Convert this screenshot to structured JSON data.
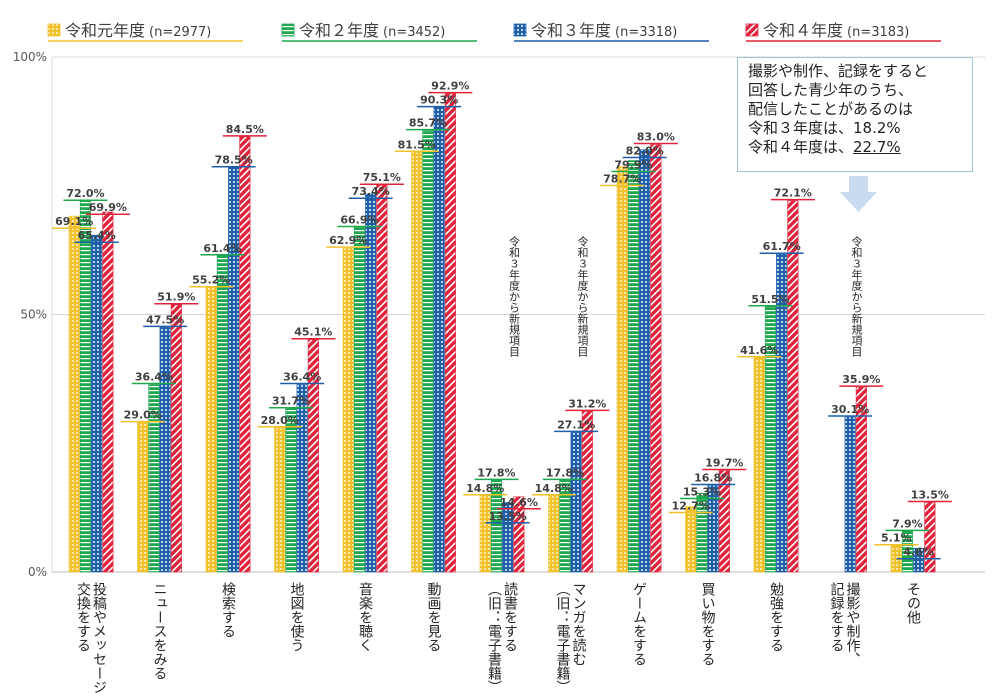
{
  "chart_data": {
    "type": "bar",
    "ylim": [
      0,
      100
    ],
    "y_ticks": [
      "0%",
      "50%",
      "100%"
    ],
    "legend_position": "top",
    "grid": true,
    "series": [
      {
        "name": "令和元年度",
        "n_label": "(n=2977)",
        "color": "#f2c12e",
        "pattern": "dots",
        "values": [
          69.1,
          29.0,
          55.2,
          28.0,
          62.9,
          81.5,
          14.8,
          14.8,
          78.7,
          12.7,
          41.6,
          null,
          5.1
        ]
      },
      {
        "name": "令和２年度",
        "n_label": "(n=3452)",
        "color": "#1fa84f",
        "pattern": "hlines",
        "values": [
          72.0,
          36.4,
          61.4,
          31.7,
          66.9,
          85.7,
          17.8,
          17.8,
          79.9,
          15.3,
          51.5,
          null,
          7.9
        ]
      },
      {
        "name": "令和３年度",
        "n_label": "(n=3318)",
        "color": "#1f5fa8",
        "pattern": "grid",
        "values": [
          65.4,
          47.5,
          78.5,
          36.4,
          73.4,
          90.3,
          13.5,
          27.1,
          82.0,
          16.8,
          61.7,
          30.1,
          4.6
        ]
      },
      {
        "name": "令和４年度",
        "n_label": "(n=3183)",
        "color": "#e0233a",
        "pattern": "diag",
        "values": [
          69.9,
          51.9,
          84.5,
          45.1,
          75.1,
          92.9,
          14.6,
          31.2,
          83.0,
          19.7,
          72.1,
          35.9,
          13.5
        ]
      }
    ],
    "categories": [
      "投稿やメッセージ交換をする",
      "ニュースをみる",
      "検索する",
      "地図を使う",
      "音楽を聴く",
      "動画を見る",
      "読書をする（旧：電子書籍）",
      "マンガを読む（旧：電子書籍）",
      "ゲームをする",
      "買い物をする",
      "勉強をする",
      "撮影や制作、記録をする",
      "その他"
    ],
    "category_label_lines": [
      [
        "投稿やメッセージ",
        "交換をする"
      ],
      [
        "ニュースをみる"
      ],
      [
        "検索する"
      ],
      [
        "地図を使う"
      ],
      [
        "音楽を聴く"
      ],
      [
        "動画を見る"
      ],
      [
        "読書をする",
        "（旧：電子書籍）"
      ],
      [
        "マンガを読む",
        "（旧：電子書籍）"
      ],
      [
        "ゲームをする"
      ],
      [
        "買い物をする"
      ],
      [
        "勉強をする"
      ],
      [
        "撮影や制作、",
        "記録をする"
      ],
      [
        "その他"
      ]
    ],
    "annotations": [
      {
        "text": "令和３年度から新規項目",
        "category_index": 6
      },
      {
        "text": "令和３年度から新規項目",
        "category_index": 7
      },
      {
        "text": "令和３年度から新規項目",
        "category_index": 11
      }
    ]
  },
  "callout": {
    "lines": [
      "撮影や制作、記録をすると",
      "回答した青少年のうち、",
      "配信したことがあるのは",
      "令和３年度は、18.2%"
    ],
    "last_line_prefix": "令和４年度は、",
    "last_line_value": "22.7%",
    "border_color": "#9ec4d8",
    "arrow_color": "#c9dcef"
  }
}
